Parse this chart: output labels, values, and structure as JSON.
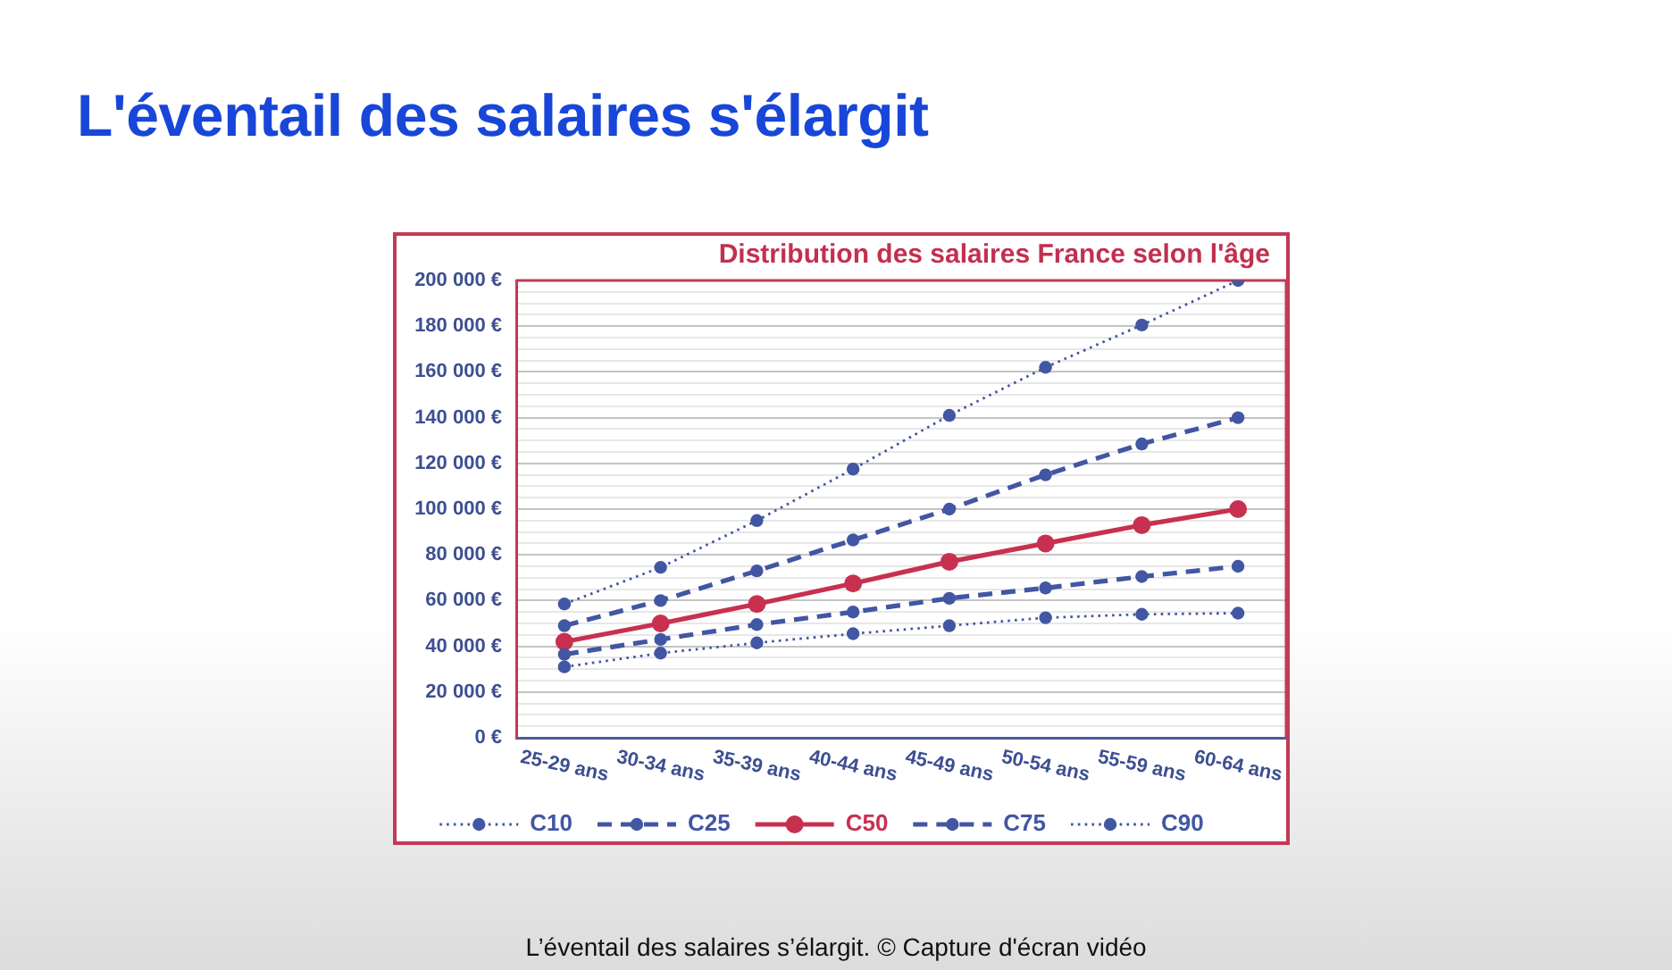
{
  "chart_data": {
    "type": "line",
    "title": "L'éventail des salaires s'élargit",
    "subtitle": "Distribution des salaires France selon l'âge",
    "categories": [
      "25-29 ans",
      "30-34 ans",
      "35-39 ans",
      "40-44 ans",
      "45-49 ans",
      "50-54 ans",
      "55-59 ans",
      "60-64 ans"
    ],
    "series": [
      {
        "name": "C10",
        "color": "#4256a3",
        "line_style": "dotted",
        "values": [
          31000,
          37000,
          41500,
          45500,
          49000,
          52500,
          54000,
          54500
        ]
      },
      {
        "name": "C25",
        "color": "#4256a3",
        "line_style": "dashed",
        "values": [
          36500,
          43000,
          49500,
          55000,
          61000,
          65500,
          70500,
          75000
        ]
      },
      {
        "name": "C50",
        "color": "#c8304f",
        "line_style": "solid",
        "values": [
          42000,
          50000,
          58500,
          67500,
          77000,
          85000,
          93000,
          100000
        ]
      },
      {
        "name": "C75",
        "color": "#4256a3",
        "line_style": "dashed",
        "values": [
          49000,
          60000,
          73000,
          86500,
          100000,
          115000,
          128500,
          140000
        ]
      },
      {
        "name": "C90",
        "color": "#4256a3",
        "line_style": "dotted",
        "values": [
          58500,
          74500,
          95000,
          117500,
          141000,
          162000,
          180500,
          200000
        ]
      }
    ],
    "ylim": [
      0,
      200000
    ],
    "yticks": [
      {
        "value": 0,
        "label": "0 €"
      },
      {
        "value": 5000,
        "label": null
      },
      {
        "value": 10000,
        "label": null
      },
      {
        "value": 15000,
        "label": null
      },
      {
        "value": 20000,
        "label": "20 000 €"
      },
      {
        "value": 25000,
        "label": null
      },
      {
        "value": 30000,
        "label": null
      },
      {
        "value": 35000,
        "label": null
      },
      {
        "value": 40000,
        "label": "40 000 €"
      },
      {
        "value": 45000,
        "label": null
      },
      {
        "value": 50000,
        "label": null
      },
      {
        "value": 55000,
        "label": null
      },
      {
        "value": 60000,
        "label": "60 000 €"
      },
      {
        "value": 65000,
        "label": null
      },
      {
        "value": 70000,
        "label": null
      },
      {
        "value": 75000,
        "label": null
      },
      {
        "value": 80000,
        "label": "80 000 €"
      },
      {
        "value": 85000,
        "label": null
      },
      {
        "value": 90000,
        "label": null
      },
      {
        "value": 95000,
        "label": null
      },
      {
        "value": 100000,
        "label": "100 000 €"
      },
      {
        "value": 105000,
        "label": null
      },
      {
        "value": 110000,
        "label": null
      },
      {
        "value": 115000,
        "label": null
      },
      {
        "value": 120000,
        "label": "120 000 €"
      },
      {
        "value": 125000,
        "label": null
      },
      {
        "value": 130000,
        "label": null
      },
      {
        "value": 135000,
        "label": null
      },
      {
        "value": 140000,
        "label": "140 000 €"
      },
      {
        "value": 145000,
        "label": null
      },
      {
        "value": 150000,
        "label": null
      },
      {
        "value": 155000,
        "label": null
      },
      {
        "value": 160000,
        "label": "160 000 €"
      },
      {
        "value": 165000,
        "label": null
      },
      {
        "value": 170000,
        "label": null
      },
      {
        "value": 175000,
        "label": null
      },
      {
        "value": 180000,
        "label": "180 000 €"
      },
      {
        "value": 185000,
        "label": null
      },
      {
        "value": 190000,
        "label": null
      },
      {
        "value": 195000,
        "label": null
      },
      {
        "value": 200000,
        "label": "200 000 €"
      }
    ],
    "grid": "y",
    "legend": "bottom",
    "marker": "circle",
    "annotations": [
      "L’éventail des salaires s’élargit. © Capture d'écran vidéo"
    ]
  }
}
